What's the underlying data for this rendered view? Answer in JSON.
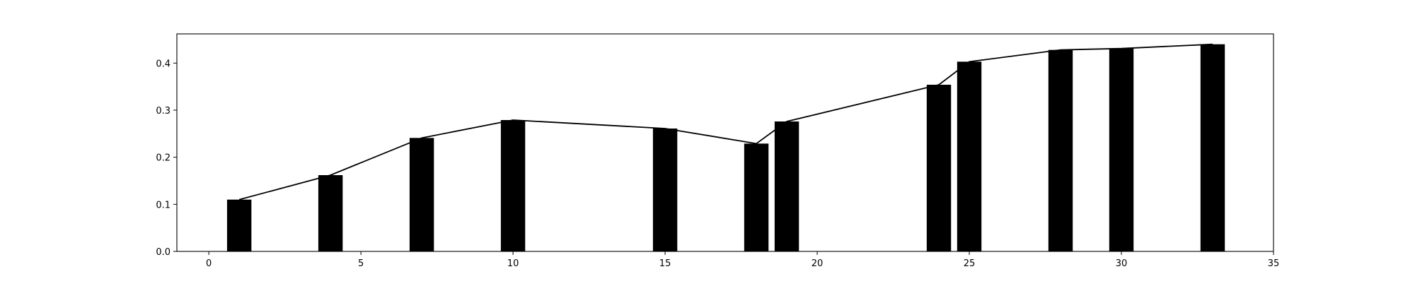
{
  "chart_data": {
    "type": "bar",
    "title": "",
    "xlabel": "",
    "ylabel": "",
    "grid": false,
    "bar_color": "#000000",
    "line_color": "#000000",
    "frame_color": "#000000",
    "xlim": [
      -1.05,
      35.0
    ],
    "ylim": [
      0.0,
      0.462
    ],
    "x_ticks": [
      0,
      5,
      10,
      15,
      20,
      25,
      30,
      35
    ],
    "y_ticks": [
      0.0,
      0.1,
      0.2,
      0.3,
      0.4
    ],
    "x_tick_labels": [
      "0",
      "5",
      "10",
      "15",
      "20",
      "25",
      "30",
      "35"
    ],
    "y_tick_labels": [
      "0.0",
      "0.1",
      "0.2",
      "0.3",
      "0.4"
    ],
    "bar_width": 0.8,
    "x": [
      1,
      4,
      7,
      10,
      15,
      18,
      19,
      24,
      25,
      28,
      30,
      33
    ],
    "values": [
      0.11,
      0.162,
      0.241,
      0.279,
      0.261,
      0.229,
      0.276,
      0.354,
      0.403,
      0.428,
      0.431,
      0.44
    ],
    "line": {
      "x": [
        1,
        4,
        7,
        10,
        15,
        18,
        19,
        24,
        25,
        28,
        30,
        33
      ],
      "values": [
        0.11,
        0.162,
        0.241,
        0.279,
        0.261,
        0.229,
        0.276,
        0.354,
        0.403,
        0.428,
        0.431,
        0.44
      ]
    }
  }
}
